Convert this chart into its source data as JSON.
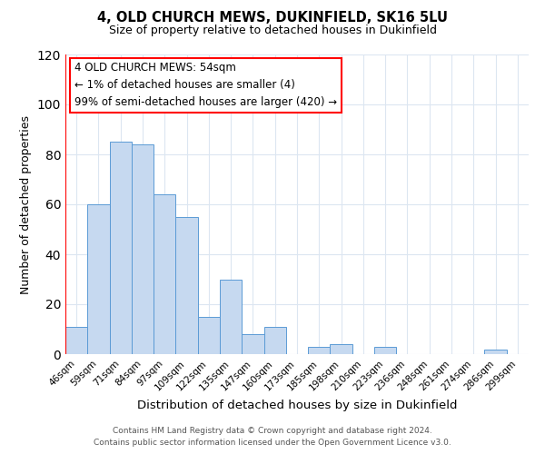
{
  "title": "4, OLD CHURCH MEWS, DUKINFIELD, SK16 5LU",
  "subtitle": "Size of property relative to detached houses in Dukinfield",
  "xlabel": "Distribution of detached houses by size in Dukinfield",
  "ylabel": "Number of detached properties",
  "bar_labels": [
    "46sqm",
    "59sqm",
    "71sqm",
    "84sqm",
    "97sqm",
    "109sqm",
    "122sqm",
    "135sqm",
    "147sqm",
    "160sqm",
    "173sqm",
    "185sqm",
    "198sqm",
    "210sqm",
    "223sqm",
    "236sqm",
    "248sqm",
    "261sqm",
    "274sqm",
    "286sqm",
    "299sqm"
  ],
  "bar_values": [
    11,
    60,
    85,
    84,
    64,
    55,
    15,
    30,
    8,
    11,
    0,
    3,
    4,
    0,
    3,
    0,
    0,
    0,
    0,
    2,
    0
  ],
  "bar_color": "#c6d9f0",
  "bar_edge_color": "#5b9bd5",
  "highlight_color": "#ff0000",
  "ylim": [
    0,
    120
  ],
  "yticks": [
    0,
    20,
    40,
    60,
    80,
    100,
    120
  ],
  "annotation_title": "4 OLD CHURCH MEWS: 54sqm",
  "annotation_line1": "← 1% of detached houses are smaller (4)",
  "annotation_line2": "99% of semi-detached houses are larger (420) →",
  "annotation_box_color": "#ffffff",
  "annotation_box_edge_color": "#ff0000",
  "footer_line1": "Contains HM Land Registry data © Crown copyright and database right 2024.",
  "footer_line2": "Contains public sector information licensed under the Open Government Licence v3.0.",
  "grid_color": "#dce6f1",
  "background_color": "#ffffff"
}
